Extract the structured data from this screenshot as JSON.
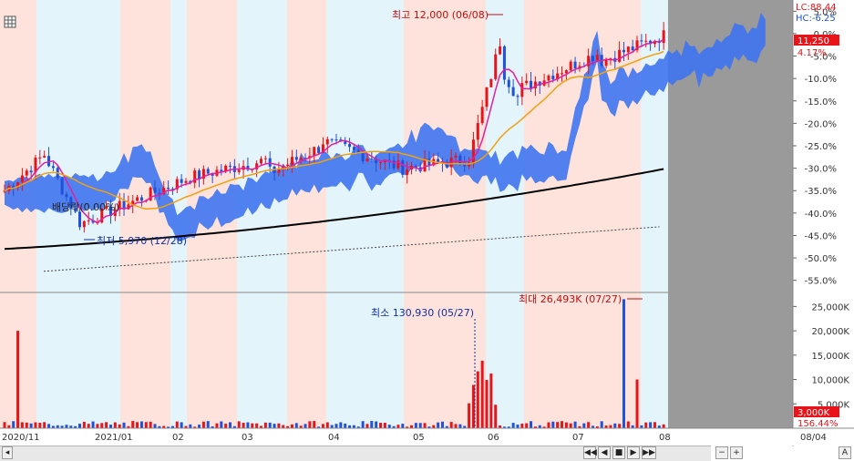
{
  "chart_data": {
    "type": "candlestick",
    "price_panel": {
      "y_axis_ticks": [
        "5.0%",
        "0.0%",
        "-5.0%",
        "-10.0%",
        "-15.0%",
        "-20.0%",
        "-25.0%",
        "-30.0%",
        "-35.0%",
        "-40.0%",
        "-45.0%",
        "-50.0%",
        "-55.0%"
      ],
      "y_range_pct": [
        -57.5,
        7.5
      ],
      "lc_label": "LC:88.44",
      "hc_label": "HC:-6.25",
      "current_price": "11,250",
      "current_change": "4.17%",
      "max_annotation": "최고 12,000 (06/08)",
      "min_annotation": "최저 5,970 (12/28)",
      "dividend_annotation": "배당락(0.00%)"
    },
    "volume_panel": {
      "y_axis_ticks": [
        "25,000K",
        "20,000K",
        "15,000K",
        "10,000K",
        "5,000K"
      ],
      "y_max_k": 27500,
      "current_volume": "3,000K",
      "current_ratio": "156.44%",
      "max_annotation": "최대 26,493K (07/27)",
      "min_annotation": "최소 130,930 (05/27)"
    },
    "x_axis_labels": [
      "2020/11",
      "2021/01",
      "02",
      "03",
      "04",
      "05",
      "06",
      "07",
      "08",
      "08/04"
    ]
  },
  "colors": {
    "up": "#e8141a",
    "down": "#1f52d8",
    "cloud": "#3f74f0",
    "band_pink": "#fde3dc",
    "band_blue": "#e4f4fb",
    "future_gray": "#9a9a9a",
    "ma_long": "#000000",
    "ma_mid": "#f0a010",
    "ma_short": "#e020a0"
  },
  "toolbar": {
    "prev_icon": "◀◀",
    "back_icon": "◀",
    "stop_icon": "■",
    "play_icon": "▶",
    "next_icon": "▶▶",
    "zoom_out_icon": "−",
    "zoom_in_icon": "+",
    "font_label": "A"
  },
  "menu_icon": "grid-icon"
}
